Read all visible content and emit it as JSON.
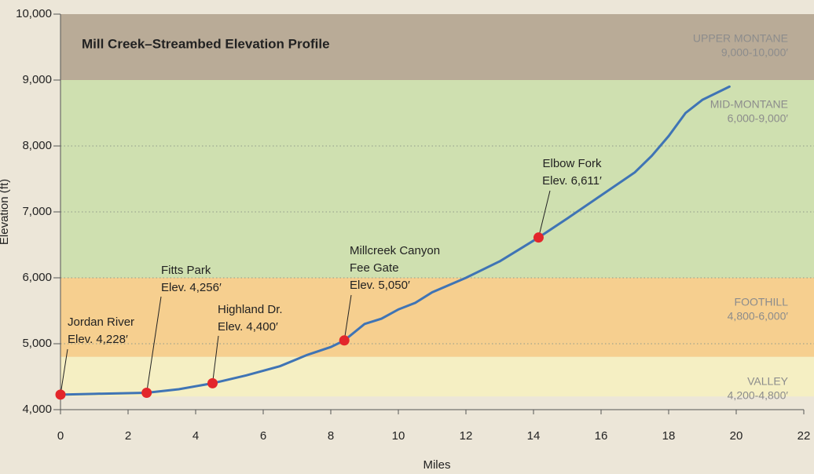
{
  "chart_data": {
    "type": "line",
    "title": "Mill Creek–Streambed Elevation Profile",
    "xlabel": "Miles",
    "ylabel": "Elevation (ft)",
    "color": "#3f74b5",
    "marker_color": "#e3262b",
    "x": [
      0,
      1,
      2.55,
      3.5,
      4.5,
      5.5,
      6.5,
      7.3,
      8,
      8.4,
      9,
      9.5,
      10,
      10.5,
      11,
      12,
      13,
      14.15,
      15,
      16,
      17,
      17.5,
      18,
      18.5,
      19,
      19.8
    ],
    "values": [
      4228,
      4240,
      4256,
      4310,
      4400,
      4520,
      4660,
      4830,
      4950,
      5050,
      5300,
      5380,
      5520,
      5620,
      5780,
      6000,
      6250,
      6611,
      6900,
      7250,
      7600,
      7850,
      8150,
      8500,
      8700,
      8900
    ],
    "xlim": [
      0,
      22
    ],
    "ylim": [
      4000,
      10000
    ],
    "xticks": [
      0,
      2,
      4,
      6,
      8,
      10,
      12,
      14,
      16,
      18,
      20,
      22
    ],
    "yticks": [
      {
        "value": 4000,
        "label": "4,000"
      },
      {
        "value": 5000,
        "label": "5,000"
      },
      {
        "value": 6000,
        "label": "6,000"
      },
      {
        "value": 7000,
        "label": "7,000"
      },
      {
        "value": 8000,
        "label": "8,000"
      },
      {
        "value": 9000,
        "label": "9,000"
      },
      {
        "value": 10000,
        "label": "10,000"
      }
    ],
    "grid": true,
    "bands": [
      {
        "name": "VALLEY",
        "range_label": "4,200-4,800′",
        "from": 4200,
        "to": 4800,
        "color": "#f5efc3"
      },
      {
        "name": "FOOTHILL",
        "range_label": "4,800-6,000′",
        "from": 4800,
        "to": 6000,
        "color": "#f6cf8f"
      },
      {
        "name": "MID-MONTANE",
        "range_label": "6,000-9,000′",
        "from": 6000,
        "to": 9000,
        "color": "#cfe0b0"
      },
      {
        "name": "UPPER MONTANE",
        "range_label": "9,000-10,000′",
        "from": 9000,
        "to": 10000,
        "color": "#b9ab97"
      }
    ],
    "markers": [
      {
        "label_lines": [
          "Jordan River"
        ],
        "x": 0,
        "value": 4228,
        "value_label": "Elev. 4,228′"
      },
      {
        "label_lines": [
          "Fitts Park"
        ],
        "x": 2.55,
        "value": 4256,
        "value_label": "Elev. 4,256′"
      },
      {
        "label_lines": [
          "Highland Dr."
        ],
        "x": 4.5,
        "value": 4400,
        "value_label": "Elev. 4,400′"
      },
      {
        "label_lines": [
          "Millcreek Canyon",
          "Fee Gate"
        ],
        "x": 8.4,
        "value": 5050,
        "value_label": "Elev. 5,050′"
      },
      {
        "label_lines": [
          "Elbow Fork"
        ],
        "x": 14.15,
        "value": 6611,
        "value_label": "Elev. 6,611′"
      }
    ]
  }
}
